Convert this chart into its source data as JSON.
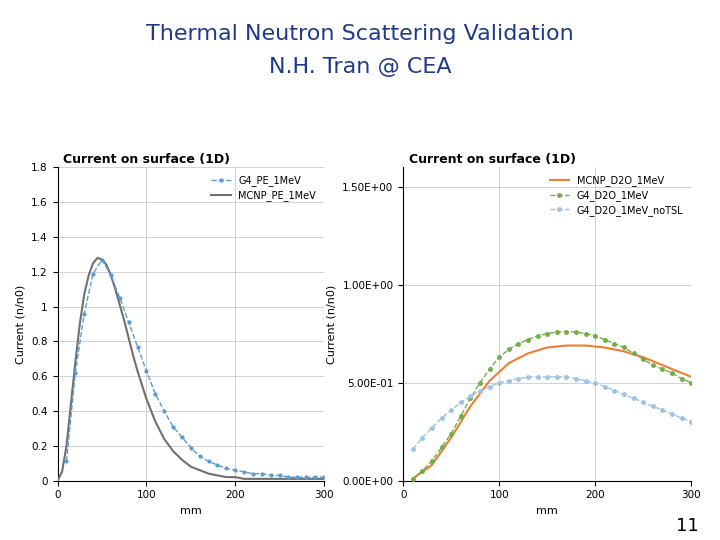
{
  "title_line1": "Thermal Neutron Scattering Validation",
  "title_line2": "N.H. Tran @ CEA",
  "title_color": "#1F3A8A",
  "title_fontsize": 16,
  "slide_number": "11",
  "plot1": {
    "title": "Current on surface (1D)",
    "xlabel": "mm",
    "ylabel": "Current (n/n0)",
    "xlim": [
      0,
      300
    ],
    "ylim": [
      0,
      1.8
    ],
    "yticks": [
      0,
      0.2,
      0.4,
      0.6,
      0.8,
      1.0,
      1.2,
      1.4,
      1.6,
      1.8
    ],
    "ytick_labels": [
      "0",
      "0.2",
      "0.4",
      "0.6",
      "0.8",
      "1",
      "1.2",
      "1.4",
      "1.6",
      "1.8"
    ],
    "xticks": [
      0,
      100,
      200,
      300
    ],
    "series": [
      {
        "label": "G4_PE_1MeV",
        "color": "#5B9BD5",
        "style": "dash_dot",
        "x": [
          10,
          20,
          30,
          40,
          50,
          60,
          70,
          80,
          90,
          100,
          110,
          120,
          130,
          140,
          150,
          160,
          170,
          180,
          190,
          200,
          210,
          220,
          230,
          240,
          250,
          260,
          270,
          280,
          290,
          300
        ],
        "y": [
          0.11,
          0.62,
          0.96,
          1.19,
          1.27,
          1.18,
          1.05,
          0.91,
          0.77,
          0.63,
          0.5,
          0.4,
          0.31,
          0.25,
          0.19,
          0.14,
          0.11,
          0.09,
          0.07,
          0.06,
          0.05,
          0.04,
          0.04,
          0.03,
          0.03,
          0.02,
          0.02,
          0.02,
          0.02,
          0.02
        ]
      },
      {
        "label": "MCNP_PE_1MeV",
        "color": "#707070",
        "style": "solid",
        "x": [
          0,
          5,
          10,
          15,
          20,
          25,
          30,
          35,
          40,
          45,
          50,
          55,
          60,
          65,
          70,
          75,
          80,
          85,
          90,
          95,
          100,
          110,
          120,
          130,
          140,
          150,
          160,
          170,
          180,
          190,
          200,
          210,
          220,
          230,
          240,
          250,
          260,
          270,
          280,
          290,
          300
        ],
        "y": [
          0.0,
          0.05,
          0.2,
          0.44,
          0.68,
          0.9,
          1.07,
          1.18,
          1.25,
          1.28,
          1.27,
          1.24,
          1.18,
          1.1,
          1.01,
          0.92,
          0.82,
          0.72,
          0.63,
          0.55,
          0.47,
          0.34,
          0.24,
          0.17,
          0.12,
          0.08,
          0.06,
          0.04,
          0.03,
          0.02,
          0.02,
          0.01,
          0.01,
          0.01,
          0.01,
          0.01,
          0.01,
          0.01,
          0.01,
          0.01,
          0.01
        ]
      }
    ]
  },
  "plot2": {
    "title": "Current on surface (1D)",
    "xlabel": "mm",
    "ylabel": "Current (n/n0)",
    "xlim": [
      0,
      300
    ],
    "ytick_labels": [
      "0.00E+00",
      "5.00E-01",
      "1.00E+00",
      "1.50E+00"
    ],
    "ytick_values": [
      0.0,
      0.5,
      1.0,
      1.5
    ],
    "xticks": [
      0,
      100,
      200,
      300
    ],
    "series": [
      {
        "label": "MCNP_D2O_1MeV",
        "color": "#ED7D31",
        "style": "solid",
        "x": [
          10,
          30,
          50,
          70,
          90,
          110,
          130,
          150,
          170,
          190,
          210,
          230,
          250,
          270,
          290,
          300
        ],
        "y": [
          0.01,
          0.08,
          0.22,
          0.38,
          0.51,
          0.6,
          0.65,
          0.68,
          0.69,
          0.69,
          0.68,
          0.66,
          0.63,
          0.59,
          0.55,
          0.53
        ]
      },
      {
        "label": "G4_D2O_1MeV",
        "color": "#70AD47",
        "style": "dash_dot",
        "x": [
          10,
          20,
          30,
          40,
          50,
          60,
          70,
          80,
          90,
          100,
          110,
          120,
          130,
          140,
          150,
          160,
          170,
          180,
          190,
          200,
          210,
          220,
          230,
          240,
          250,
          260,
          270,
          280,
          290,
          300
        ],
        "y": [
          0.01,
          0.05,
          0.1,
          0.17,
          0.24,
          0.33,
          0.42,
          0.5,
          0.57,
          0.63,
          0.67,
          0.7,
          0.72,
          0.74,
          0.75,
          0.76,
          0.76,
          0.76,
          0.75,
          0.74,
          0.72,
          0.7,
          0.68,
          0.65,
          0.62,
          0.59,
          0.57,
          0.55,
          0.52,
          0.5
        ]
      },
      {
        "label": "G4_D2O_1MeV_noTSL",
        "color": "#9DC3E6",
        "style": "dash_dot",
        "x": [
          10,
          20,
          30,
          40,
          50,
          60,
          70,
          80,
          90,
          100,
          110,
          120,
          130,
          140,
          150,
          160,
          170,
          180,
          190,
          200,
          210,
          220,
          230,
          240,
          250,
          260,
          270,
          280,
          290,
          300
        ],
        "y": [
          0.16,
          0.22,
          0.27,
          0.32,
          0.36,
          0.4,
          0.43,
          0.46,
          0.48,
          0.5,
          0.51,
          0.52,
          0.53,
          0.53,
          0.53,
          0.53,
          0.53,
          0.52,
          0.51,
          0.5,
          0.48,
          0.46,
          0.44,
          0.42,
          0.4,
          0.38,
          0.36,
          0.34,
          0.32,
          0.3
        ]
      }
    ]
  }
}
